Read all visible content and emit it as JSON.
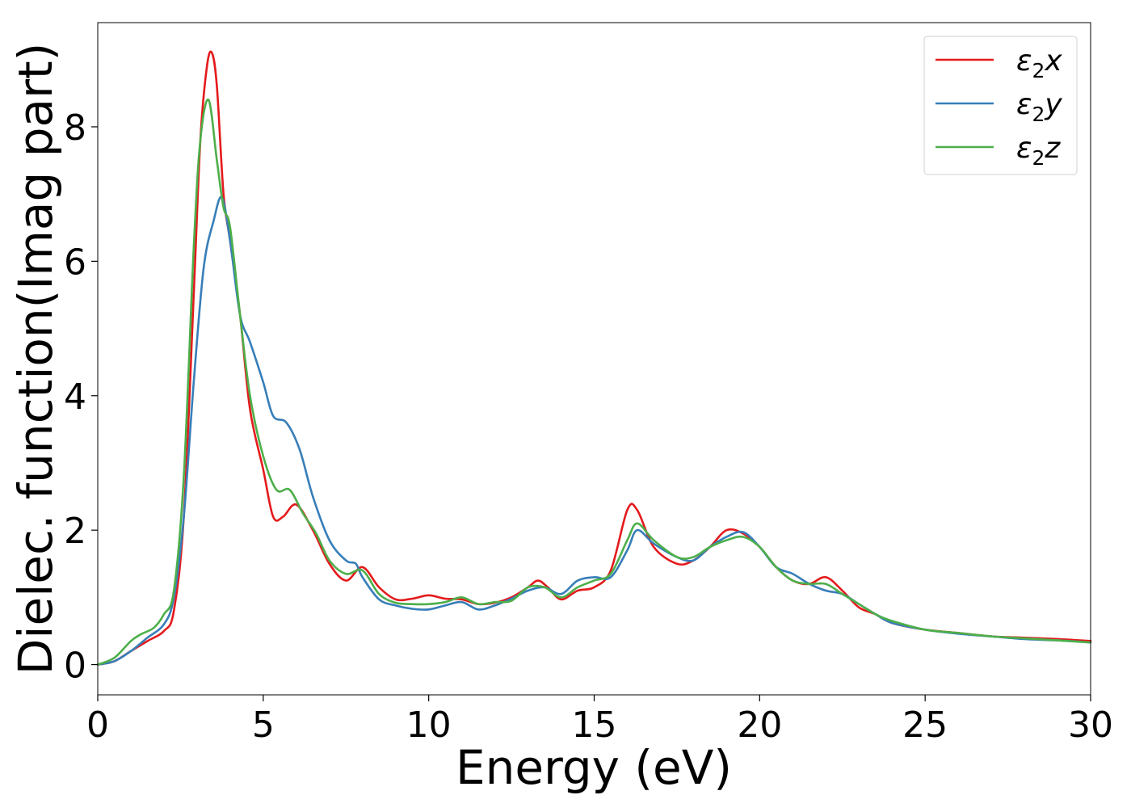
{
  "chart_data": {
    "type": "line",
    "title": "",
    "xlabel": "Energy (eV)",
    "ylabel": "Dielec. function(Imag part)",
    "xlim": [
      0,
      30
    ],
    "ylim": [
      -0.45,
      9.55
    ],
    "xticks": [
      0,
      5,
      10,
      15,
      20,
      25,
      30
    ],
    "yticks": [
      0,
      2,
      4,
      6,
      8
    ],
    "grid": false,
    "legend_position": "top-right",
    "series": [
      {
        "name": "ε2x",
        "legend_base": "ε",
        "legend_sub": "2",
        "legend_var": "x",
        "color": "#e41a1c",
        "x": [
          0,
          0.5,
          1.0,
          1.5,
          2.0,
          2.3,
          2.6,
          2.9,
          3.1,
          3.3,
          3.45,
          3.6,
          3.8,
          4.0,
          4.3,
          4.6,
          5.0,
          5.3,
          5.6,
          6.0,
          6.5,
          7.0,
          7.5,
          8.0,
          8.5,
          9.0,
          9.5,
          10.0,
          10.5,
          11.0,
          11.5,
          12.0,
          12.5,
          13.0,
          13.3,
          13.6,
          14.0,
          14.5,
          15.0,
          15.5,
          16.0,
          16.3,
          16.8,
          17.5,
          18.0,
          18.5,
          19.0,
          19.5,
          20.0,
          20.5,
          21.0,
          21.5,
          22.0,
          22.5,
          23.0,
          23.5,
          24.0,
          25.0,
          26.0,
          27.0,
          28.0,
          29.0,
          30.0
        ],
        "y": [
          0,
          0.05,
          0.2,
          0.35,
          0.5,
          0.8,
          2.2,
          5.5,
          7.8,
          8.9,
          9.1,
          8.6,
          7.0,
          6.3,
          5.2,
          3.8,
          2.9,
          2.2,
          2.2,
          2.38,
          2.0,
          1.5,
          1.25,
          1.45,
          1.15,
          0.97,
          0.98,
          1.03,
          0.98,
          0.97,
          0.9,
          0.92,
          1.0,
          1.15,
          1.25,
          1.15,
          0.97,
          1.1,
          1.15,
          1.4,
          2.3,
          2.3,
          1.75,
          1.5,
          1.55,
          1.75,
          2.0,
          1.95,
          1.75,
          1.45,
          1.25,
          1.2,
          1.3,
          1.1,
          0.85,
          0.75,
          0.62,
          0.52,
          0.47,
          0.42,
          0.4,
          0.38,
          0.35
        ]
      },
      {
        "name": "ε2y",
        "legend_base": "ε",
        "legend_sub": "2",
        "legend_var": "y",
        "color": "#377eb8",
        "x": [
          0,
          0.5,
          1.0,
          1.5,
          2.0,
          2.3,
          2.6,
          2.9,
          3.2,
          3.5,
          3.75,
          4.0,
          4.3,
          4.6,
          5.0,
          5.3,
          5.7,
          6.1,
          6.5,
          7.0,
          7.5,
          7.8,
          8.0,
          8.5,
          9.0,
          9.5,
          10.0,
          10.5,
          11.0,
          11.5,
          12.0,
          12.5,
          13.0,
          13.5,
          14.0,
          14.5,
          15.0,
          15.5,
          16.0,
          16.3,
          16.8,
          17.5,
          18.0,
          18.5,
          19.0,
          19.5,
          20.0,
          20.5,
          21.0,
          21.5,
          22.0,
          22.5,
          23.0,
          23.5,
          24.0,
          25.0,
          26.0,
          27.0,
          28.0,
          29.0,
          30.0
        ],
        "y": [
          0,
          0.05,
          0.2,
          0.4,
          0.6,
          1.0,
          2.2,
          4.2,
          5.9,
          6.6,
          6.95,
          6.3,
          5.2,
          4.8,
          4.2,
          3.7,
          3.6,
          3.2,
          2.5,
          1.85,
          1.55,
          1.5,
          1.3,
          0.97,
          0.88,
          0.83,
          0.82,
          0.88,
          0.93,
          0.82,
          0.88,
          0.98,
          1.1,
          1.15,
          1.05,
          1.25,
          1.3,
          1.3,
          1.7,
          2.0,
          1.8,
          1.6,
          1.55,
          1.75,
          1.9,
          1.97,
          1.75,
          1.45,
          1.35,
          1.2,
          1.1,
          1.05,
          0.9,
          0.75,
          0.62,
          0.52,
          0.46,
          0.42,
          0.38,
          0.36,
          0.33
        ]
      },
      {
        "name": "ε2z",
        "legend_base": "ε",
        "legend_sub": "2",
        "legend_var": "z",
        "color": "#4daf4a",
        "x": [
          0,
          0.5,
          1.0,
          1.3,
          1.7,
          2.0,
          2.3,
          2.6,
          2.9,
          3.1,
          3.35,
          3.6,
          3.8,
          4.0,
          4.3,
          4.6,
          5.0,
          5.4,
          5.8,
          6.2,
          6.6,
          7.0,
          7.5,
          8.0,
          8.5,
          9.0,
          9.5,
          10.0,
          10.5,
          11.0,
          11.5,
          12.0,
          12.5,
          13.0,
          13.5,
          14.0,
          14.5,
          15.0,
          15.5,
          16.0,
          16.3,
          16.8,
          17.5,
          18.0,
          18.5,
          19.0,
          19.5,
          20.0,
          20.5,
          21.0,
          21.5,
          22.0,
          22.5,
          23.0,
          23.5,
          24.0,
          25.0,
          26.0,
          27.0,
          28.0,
          29.0,
          30.0
        ],
        "y": [
          0,
          0.1,
          0.35,
          0.45,
          0.55,
          0.75,
          1.1,
          2.8,
          6.2,
          7.8,
          8.4,
          7.5,
          6.8,
          6.5,
          5.2,
          4.0,
          3.1,
          2.6,
          2.6,
          2.25,
          1.95,
          1.55,
          1.35,
          1.4,
          1.05,
          0.92,
          0.9,
          0.9,
          0.93,
          1.0,
          0.9,
          0.93,
          0.95,
          1.15,
          1.15,
          1.0,
          1.15,
          1.25,
          1.35,
          1.85,
          2.1,
          1.85,
          1.6,
          1.6,
          1.75,
          1.85,
          1.9,
          1.75,
          1.45,
          1.25,
          1.2,
          1.2,
          1.05,
          0.9,
          0.75,
          0.65,
          0.52,
          0.47,
          0.42,
          0.39,
          0.36,
          0.33
        ]
      }
    ]
  }
}
